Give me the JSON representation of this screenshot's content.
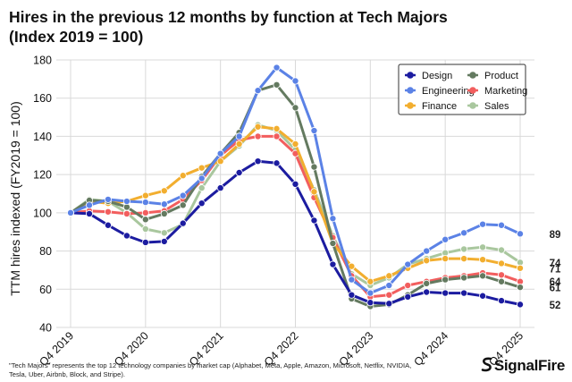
{
  "header": {
    "title_line1": "Hires in the previous 12 months by function at Tech Majors",
    "title_line2": "(Index 2019 = 100)"
  },
  "footnote": "\"Tech Majors\" represents the top 12 technology companies by market cap (Alphabet, Meta, Apple, Amazon, Microsoft, Netflix, NVIDIA, Tesla, Uber, Airbnb, Block, and Stripe).",
  "brand": {
    "name": "SignalFire",
    "icon": "signalfire-logo-icon"
  },
  "chart_data": {
    "type": "line",
    "ylabel": "TTM hires indexed (FY2019 = 100)",
    "ylim": [
      40,
      180
    ],
    "yticks": [
      40,
      60,
      80,
      100,
      120,
      140,
      160,
      180
    ],
    "x": [
      "Q4 2019",
      "Q1 2020",
      "Q2 2020",
      "Q3 2020",
      "Q4 2020",
      "Q1 2021",
      "Q2 2021",
      "Q3 2021",
      "Q4 2021",
      "Q1 2022",
      "Q2 2022",
      "Q3 2022",
      "Q4 2022",
      "Q1 2023",
      "Q2 2023",
      "Q3 2023",
      "Q4 2023",
      "Q1 2024",
      "Q2 2024",
      "Q3 2024",
      "Q4 2024",
      "Q1 2025",
      "Q2 2025",
      "Q3 2025",
      "Q4 2025"
    ],
    "x_tick_labels": [
      "Q4 2019",
      "Q4 2020",
      "Q4 2021",
      "Q4 2022",
      "Q4 2023",
      "Q4 2024",
      "Q4 2025"
    ],
    "x_tick_indices": [
      0,
      4,
      8,
      12,
      16,
      20,
      24
    ],
    "grid": true,
    "legend_position": "top-right",
    "series": [
      {
        "name": "Design",
        "color": "#1c1ca0",
        "end_label": "52",
        "values": [
          100,
          99.5,
          93.5,
          88,
          84.5,
          85,
          94.5,
          105,
          113,
          121,
          127,
          126,
          115,
          96,
          73,
          57,
          53,
          52.5,
          56,
          58.5,
          58,
          58,
          56.5,
          54,
          52
        ]
      },
      {
        "name": "Engineering",
        "color": "#5b82e6",
        "end_label": "89",
        "values": [
          100,
          104,
          107,
          106,
          105.5,
          104.5,
          109,
          118,
          131,
          140,
          164,
          176,
          169,
          143,
          97,
          65,
          58,
          62,
          73,
          80,
          86,
          89.5,
          94,
          93.5,
          89
        ]
      },
      {
        "name": "Finance",
        "color": "#f2ae2f",
        "end_label": "71",
        "values": [
          100,
          106,
          105,
          106,
          109,
          111.5,
          119.5,
          123.5,
          127,
          136,
          145,
          144,
          136,
          111,
          84,
          72,
          64,
          67,
          71,
          75,
          76,
          76,
          75.5,
          73.5,
          71
        ]
      },
      {
        "name": "Product",
        "color": "#647a60",
        "end_label": "61",
        "values": [
          100,
          106.5,
          106,
          103,
          96.5,
          99.5,
          104,
          119,
          131,
          142,
          164,
          167,
          155,
          124,
          84,
          55,
          51,
          52,
          57,
          63,
          65,
          66,
          67,
          64,
          61
        ]
      },
      {
        "name": "Marketing",
        "color": "#f25e5e",
        "end_label": "64",
        "values": [
          100,
          101,
          100.5,
          99.5,
          100,
          101,
          107,
          117,
          130,
          138,
          140,
          140,
          131,
          108,
          87,
          67,
          56,
          57,
          62,
          64,
          66,
          67,
          68.5,
          67.5,
          64
        ]
      },
      {
        "name": "Sales",
        "color": "#a9c79e",
        "end_label": "74",
        "values": [
          100,
          107,
          106,
          100,
          91.5,
          89.5,
          94,
          113,
          127,
          135,
          146,
          143,
          133,
          112,
          88,
          68,
          62,
          66,
          73,
          76,
          79,
          81,
          82,
          80.5,
          74
        ]
      }
    ]
  }
}
